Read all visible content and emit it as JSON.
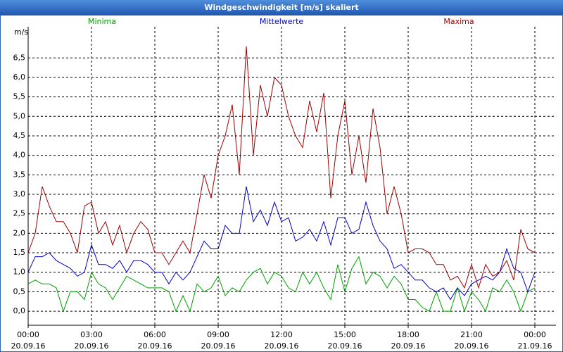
{
  "chart_data": {
    "type": "line",
    "title": "Windgeschwindigkeit [m/s] skaliert",
    "y_label": "m/s",
    "x": [
      "20.09.16 00:00",
      "20.09.16 00:20",
      "20.09.16 00:40",
      "20.09.16 01:00",
      "20.09.16 01:20",
      "20.09.16 01:40",
      "20.09.16 02:00",
      "20.09.16 02:20",
      "20.09.16 02:40",
      "20.09.16 03:00",
      "20.09.16 03:20",
      "20.09.16 03:40",
      "20.09.16 04:00",
      "20.09.16 04:20",
      "20.09.16 04:40",
      "20.09.16 05:00",
      "20.09.16 05:20",
      "20.09.16 05:40",
      "20.09.16 06:00",
      "20.09.16 06:20",
      "20.09.16 06:40",
      "20.09.16 07:00",
      "20.09.16 07:20",
      "20.09.16 07:40",
      "20.09.16 08:00",
      "20.09.16 08:20",
      "20.09.16 08:40",
      "20.09.16 09:00",
      "20.09.16 09:20",
      "20.09.16 09:40",
      "20.09.16 10:00",
      "20.09.16 10:20",
      "20.09.16 10:40",
      "20.09.16 11:00",
      "20.09.16 11:20",
      "20.09.16 11:40",
      "20.09.16 12:00",
      "20.09.16 12:20",
      "20.09.16 12:40",
      "20.09.16 13:00",
      "20.09.16 13:20",
      "20.09.16 13:40",
      "20.09.16 14:00",
      "20.09.16 14:20",
      "20.09.16 14:40",
      "20.09.16 15:00",
      "20.09.16 15:20",
      "20.09.16 15:40",
      "20.09.16 16:00",
      "20.09.16 16:20",
      "20.09.16 16:40",
      "20.09.16 17:00",
      "20.09.16 17:20",
      "20.09.16 17:40",
      "20.09.16 18:00",
      "20.09.16 18:20",
      "20.09.16 18:40",
      "20.09.16 19:00",
      "20.09.16 19:20",
      "20.09.16 19:40",
      "20.09.16 20:00",
      "20.09.16 20:20",
      "20.09.16 20:40",
      "20.09.16 21:00",
      "20.09.16 21:20",
      "20.09.16 21:40",
      "20.09.16 22:00",
      "20.09.16 22:20",
      "20.09.16 22:40",
      "20.09.16 23:00",
      "20.09.16 23:20",
      "20.09.16 23:40",
      "21.09.16 00:00"
    ],
    "series": [
      {
        "name": "Minima",
        "color": "#00a000",
        "values": [
          0.7,
          0.8,
          0.7,
          0.7,
          0.6,
          0.0,
          0.5,
          0.5,
          0.3,
          1.0,
          0.7,
          0.6,
          0.3,
          0.6,
          0.9,
          0.8,
          0.7,
          0.6,
          0.6,
          0.6,
          0.5,
          0.0,
          0.4,
          0.0,
          0.7,
          0.5,
          0.6,
          0.9,
          0.4,
          0.6,
          0.5,
          0.8,
          1.0,
          1.1,
          0.7,
          1.0,
          0.9,
          0.6,
          0.5,
          1.0,
          0.7,
          1.0,
          0.6,
          0.3,
          1.2,
          0.5,
          1.1,
          1.4,
          0.7,
          1.0,
          0.9,
          0.6,
          0.9,
          0.7,
          0.3,
          0.3,
          0.1,
          0.0,
          0.5,
          0.0,
          0.0,
          0.6,
          0.0,
          0.5,
          0.3,
          0.0,
          0.6,
          0.5,
          0.8,
          0.5,
          0.0,
          0.5,
          0.6
        ]
      },
      {
        "name": "Mittelwerte",
        "color": "#0000c0",
        "values": [
          1.0,
          1.4,
          1.4,
          1.5,
          1.3,
          1.2,
          1.1,
          0.9,
          1.0,
          1.7,
          1.2,
          1.2,
          1.1,
          1.3,
          1.0,
          1.3,
          1.3,
          1.2,
          1.0,
          1.0,
          0.7,
          1.0,
          0.8,
          1.0,
          1.4,
          1.8,
          1.6,
          1.6,
          2.2,
          2.0,
          2.0,
          3.2,
          2.3,
          2.6,
          2.2,
          2.8,
          2.3,
          2.4,
          1.8,
          1.9,
          2.1,
          1.8,
          2.3,
          1.7,
          2.4,
          2.4,
          2.0,
          2.1,
          2.8,
          2.2,
          1.8,
          1.6,
          1.1,
          1.2,
          1.0,
          0.8,
          0.8,
          0.6,
          0.5,
          0.6,
          0.3,
          0.6,
          0.4,
          0.7,
          0.8,
          0.9,
          0.8,
          1.0,
          1.6,
          1.1,
          1.0,
          0.5,
          1.0
        ]
      },
      {
        "name": "Maxima",
        "color": "#a00000",
        "values": [
          1.5,
          2.0,
          3.2,
          2.7,
          2.3,
          2.3,
          2.0,
          1.5,
          2.7,
          2.8,
          2.0,
          2.3,
          1.7,
          2.2,
          1.5,
          2.0,
          2.3,
          2.1,
          1.5,
          1.5,
          1.2,
          1.5,
          1.8,
          1.5,
          2.5,
          3.5,
          2.9,
          4.0,
          4.5,
          5.3,
          3.5,
          6.8,
          4.0,
          5.8,
          5.0,
          6.0,
          5.8,
          5.0,
          4.5,
          4.2,
          5.4,
          4.6,
          5.6,
          2.9,
          4.5,
          5.4,
          3.5,
          4.5,
          3.3,
          5.2,
          4.2,
          2.5,
          3.2,
          2.5,
          1.5,
          1.6,
          1.6,
          1.5,
          1.2,
          1.2,
          0.8,
          0.9,
          0.6,
          1.2,
          0.6,
          1.2,
          0.9,
          1.0,
          1.3,
          0.8,
          2.1,
          1.6,
          1.5
        ]
      }
    ],
    "xlim": [
      "20.09.16 00:00",
      "21.09.16 01:00"
    ],
    "xticks": [
      {
        "value": "20.09.16 00:00",
        "label": [
          "00:00",
          "20.09.16"
        ]
      },
      {
        "value": "20.09.16 03:00",
        "label": [
          "03:00",
          "20.09.16"
        ]
      },
      {
        "value": "20.09.16 06:00",
        "label": [
          "06:00",
          "20.09.16"
        ]
      },
      {
        "value": "20.09.16 09:00",
        "label": [
          "09:00",
          "20.09.16"
        ]
      },
      {
        "value": "20.09.16 12:00",
        "label": [
          "12:00",
          "20.09.16"
        ]
      },
      {
        "value": "20.09.16 15:00",
        "label": [
          "15:00",
          "20.09.16"
        ]
      },
      {
        "value": "20.09.16 18:00",
        "label": [
          "18:00",
          "20.09.16"
        ]
      },
      {
        "value": "20.09.16 21:00",
        "label": [
          "21:00",
          "20.09.16"
        ]
      },
      {
        "value": "21.09.16 00:00",
        "label": [
          "00:00",
          "21.09.16"
        ]
      }
    ],
    "ylim": [
      -0.36,
      7.3
    ],
    "yticks": [
      {
        "value": 0,
        "label": "0,0"
      },
      {
        "value": 0.5,
        "label": "0,5"
      },
      {
        "value": 1,
        "label": "1,0"
      },
      {
        "value": 1.5,
        "label": "1,5"
      },
      {
        "value": 2,
        "label": "2,0"
      },
      {
        "value": 2.5,
        "label": "2,5"
      },
      {
        "value": 3,
        "label": "3,0"
      },
      {
        "value": 3.5,
        "label": "3,5"
      },
      {
        "value": 4,
        "label": "4,0"
      },
      {
        "value": 4.5,
        "label": "4,5"
      },
      {
        "value": 5,
        "label": "5,0"
      },
      {
        "value": 5.5,
        "label": "5,5"
      },
      {
        "value": 6,
        "label": "6,0"
      },
      {
        "value": 6.5,
        "label": "6,5"
      }
    ],
    "grid": true
  }
}
